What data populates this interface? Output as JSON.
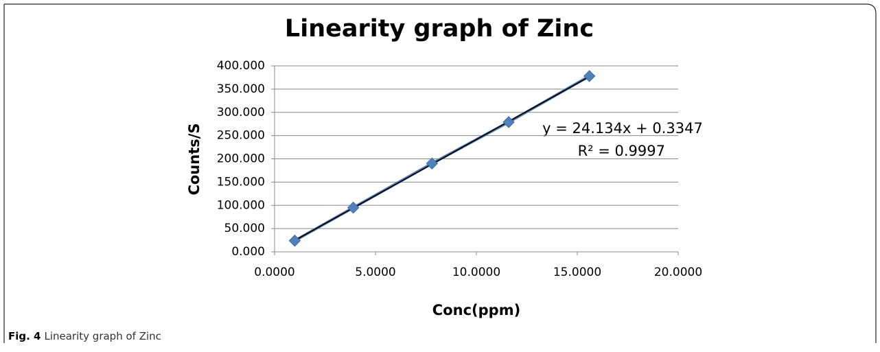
{
  "chart_data": {
    "type": "scatter",
    "title": "Linearity graph of Zinc",
    "x_label": "Conc(ppm)",
    "y_label": "Counts/S",
    "series": [
      {
        "name": "Zinc",
        "color": "#4f81bd",
        "x": [
          1.0,
          3.9,
          7.8,
          11.6,
          15.6
        ],
        "values": [
          24,
          95,
          190,
          279,
          378
        ]
      }
    ],
    "trendline": {
      "slope": 24.134,
      "intercept": 0.3347,
      "color": "#000000"
    },
    "annotations": [
      "y = 24.134x + 0.3347",
      "R² = 0.9997"
    ],
    "xlim": [
      0,
      20
    ],
    "ylim": [
      0,
      400
    ],
    "xticks": [
      {
        "value": 0,
        "label": "0.0000"
      },
      {
        "value": 5,
        "label": "5.0000"
      },
      {
        "value": 10,
        "label": "10.0000"
      },
      {
        "value": 15,
        "label": "15.0000"
      },
      {
        "value": 20,
        "label": "20.0000"
      }
    ],
    "yticks": [
      {
        "value": 0,
        "label": "0.000"
      },
      {
        "value": 50,
        "label": "50.000"
      },
      {
        "value": 100,
        "label": "100.000"
      },
      {
        "value": 150,
        "label": "150.000"
      },
      {
        "value": 200,
        "label": "200.000"
      },
      {
        "value": 250,
        "label": "250.000"
      },
      {
        "value": 300,
        "label": "300.000"
      },
      {
        "value": 350,
        "label": "350.000"
      },
      {
        "value": 400,
        "label": "400.000"
      }
    ],
    "grid": true
  },
  "caption": {
    "label": "Fig. 4",
    "text": "Linearity graph of Zinc"
  }
}
